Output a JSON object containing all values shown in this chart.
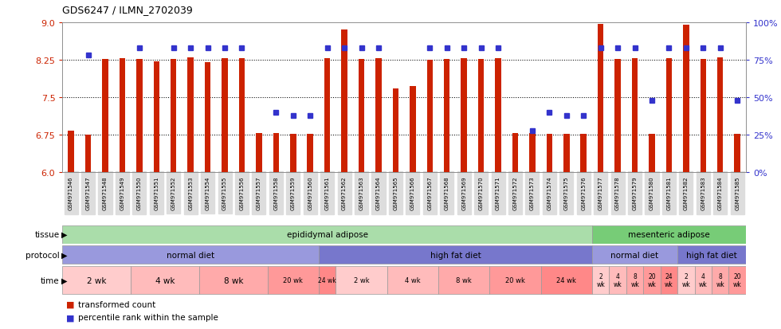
{
  "title": "GDS6247 / ILMN_2702039",
  "samples": [
    "GSM971546",
    "GSM971547",
    "GSM971548",
    "GSM971549",
    "GSM971550",
    "GSM971551",
    "GSM971552",
    "GSM971553",
    "GSM971554",
    "GSM971555",
    "GSM971556",
    "GSM971557",
    "GSM971558",
    "GSM971559",
    "GSM971560",
    "GSM971561",
    "GSM971562",
    "GSM971563",
    "GSM971564",
    "GSM971565",
    "GSM971566",
    "GSM971567",
    "GSM971568",
    "GSM971569",
    "GSM971570",
    "GSM971571",
    "GSM971572",
    "GSM971573",
    "GSM971574",
    "GSM971575",
    "GSM971576",
    "GSM971577",
    "GSM971578",
    "GSM971579",
    "GSM971580",
    "GSM971581",
    "GSM971582",
    "GSM971583",
    "GSM971584",
    "GSM971585"
  ],
  "bar_values": [
    6.83,
    6.76,
    8.27,
    8.28,
    8.27,
    8.22,
    8.27,
    8.3,
    8.2,
    8.28,
    8.28,
    6.78,
    6.78,
    6.77,
    6.77,
    8.28,
    8.86,
    8.27,
    8.28,
    7.68,
    7.73,
    8.25,
    8.27,
    8.28,
    8.27,
    8.28,
    6.78,
    6.78,
    6.77,
    6.77,
    6.77,
    8.97,
    8.27,
    8.28,
    6.77,
    8.28,
    8.95,
    8.27,
    8.3,
    6.77
  ],
  "dot_pct": [
    null,
    78,
    null,
    null,
    83,
    null,
    83,
    83,
    83,
    83,
    83,
    null,
    40,
    38,
    38,
    83,
    83,
    83,
    83,
    null,
    null,
    83,
    83,
    83,
    83,
    83,
    null,
    28,
    40,
    38,
    38,
    83,
    83,
    83,
    48,
    83,
    83,
    83,
    83,
    48
  ],
  "ymin": 6.0,
  "ymax": 9.0,
  "yticks_left": [
    6.0,
    6.75,
    7.5,
    8.25,
    9.0
  ],
  "yticks_right": [
    0,
    25,
    50,
    75,
    100
  ],
  "bar_color": "#CC2200",
  "dot_color": "#3333CC",
  "tissue_groups": [
    {
      "label": "epididymal adipose",
      "start": 0,
      "end": 31,
      "color": "#AADDAA"
    },
    {
      "label": "mesenteric adipose",
      "start": 31,
      "end": 40,
      "color": "#77CC77"
    }
  ],
  "protocol_groups": [
    {
      "label": "normal diet",
      "start": 0,
      "end": 15,
      "color": "#9999DD"
    },
    {
      "label": "high fat diet",
      "start": 15,
      "end": 31,
      "color": "#7777CC"
    },
    {
      "label": "normal diet",
      "start": 31,
      "end": 36,
      "color": "#9999DD"
    },
    {
      "label": "high fat diet",
      "start": 36,
      "end": 40,
      "color": "#7777CC"
    }
  ],
  "time_groups": [
    {
      "label": "2 wk",
      "start": 0,
      "end": 4,
      "color": "#FFCCCC"
    },
    {
      "label": "4 wk",
      "start": 4,
      "end": 8,
      "color": "#FFBBBB"
    },
    {
      "label": "8 wk",
      "start": 8,
      "end": 12,
      "color": "#FFAAAA"
    },
    {
      "label": "20 wk",
      "start": 12,
      "end": 15,
      "color": "#FF9999"
    },
    {
      "label": "24 wk",
      "start": 15,
      "end": 16,
      "color": "#FF8888"
    },
    {
      "label": "2 wk",
      "start": 16,
      "end": 19,
      "color": "#FFCCCC"
    },
    {
      "label": "4 wk",
      "start": 19,
      "end": 22,
      "color": "#FFBBBB"
    },
    {
      "label": "8 wk",
      "start": 22,
      "end": 25,
      "color": "#FFAAAA"
    },
    {
      "label": "20 wk",
      "start": 25,
      "end": 28,
      "color": "#FF9999"
    },
    {
      "label": "24 wk",
      "start": 28,
      "end": 31,
      "color": "#FF8888"
    },
    {
      "label": "2\nwk",
      "start": 31,
      "end": 32,
      "color": "#FFCCCC"
    },
    {
      "label": "4\nwk",
      "start": 32,
      "end": 33,
      "color": "#FFBBBB"
    },
    {
      "label": "8\nwk",
      "start": 33,
      "end": 34,
      "color": "#FFAAAA"
    },
    {
      "label": "20\nwk",
      "start": 34,
      "end": 35,
      "color": "#FF9999"
    },
    {
      "label": "24\nwk",
      "start": 35,
      "end": 36,
      "color": "#FF8888"
    },
    {
      "label": "2\nwk",
      "start": 36,
      "end": 37,
      "color": "#FFCCCC"
    },
    {
      "label": "4\nwk",
      "start": 37,
      "end": 38,
      "color": "#FFBBBB"
    },
    {
      "label": "8\nwk",
      "start": 38,
      "end": 39,
      "color": "#FFAAAA"
    },
    {
      "label": "20\nwk",
      "start": 39,
      "end": 40,
      "color": "#FF9999"
    },
    {
      "label": "24\nwk",
      "start": 40,
      "end": 40,
      "color": "#FF8888"
    }
  ],
  "xtick_bg": "#DDDDDD",
  "label_color": "#333333"
}
